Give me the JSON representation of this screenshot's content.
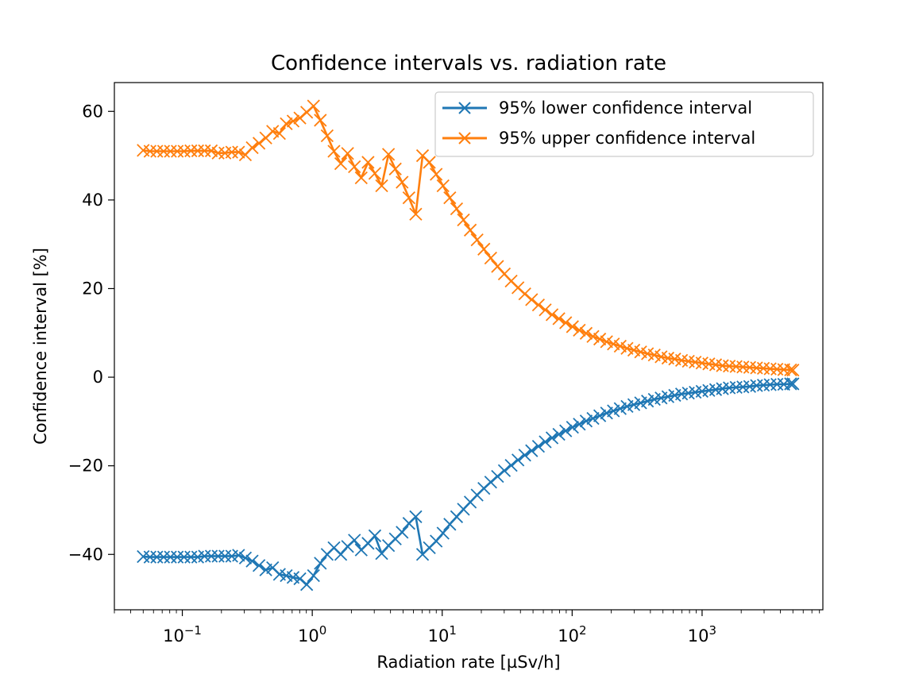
{
  "chart_data": {
    "type": "line",
    "title": "Confidence intervals vs. radiation rate",
    "xlabel": "Radiation rate [µSv/h]",
    "ylabel": "Confidence interval [%]",
    "xscale": "log",
    "xlim": [
      0.03,
      8500
    ],
    "ylim": [
      -52.5,
      66.5
    ],
    "x_ticks": [
      {
        "value": 0.1,
        "base": "10",
        "exp": "−1"
      },
      {
        "value": 1,
        "base": "10",
        "exp": "0"
      },
      {
        "value": 10,
        "base": "10",
        "exp": "1"
      },
      {
        "value": 100,
        "base": "10",
        "exp": "2"
      },
      {
        "value": 1000,
        "base": "10",
        "exp": "3"
      }
    ],
    "y_ticks": [
      {
        "value": 60,
        "label": "60"
      },
      {
        "value": 40,
        "label": "40"
      },
      {
        "value": 20,
        "label": "20"
      },
      {
        "value": 0,
        "label": "0"
      },
      {
        "value": -20,
        "label": "−20"
      },
      {
        "value": -40,
        "label": "−40"
      }
    ],
    "grid": false,
    "legend": "top-right",
    "marker": "x",
    "x": [
      0.05,
      0.0564,
      0.0636,
      0.0718,
      0.081,
      0.0914,
      0.1031,
      0.1164,
      0.1313,
      0.1481,
      0.1671,
      0.1886,
      0.2128,
      0.2401,
      0.2709,
      0.3057,
      0.3449,
      0.3892,
      0.4391,
      0.4955,
      0.5591,
      0.6309,
      0.7119,
      0.8032,
      0.9063,
      1.0227,
      1.1539,
      1.302,
      1.4692,
      1.6577,
      1.8705,
      2.1106,
      2.3815,
      2.6872,
      3.0321,
      3.4213,
      3.8605,
      4.3561,
      4.9152,
      5.5461,
      6.258,
      7.0613,
      7.9677,
      8.9905,
      10.1445,
      11.4467,
      12.916,
      14.5739,
      16.4447,
      18.5556,
      20.9374,
      23.6251,
      26.6576,
      30.0795,
      33.9406,
      38.2973,
      43.2132,
      48.7601,
      55.019,
      62.0815,
      70.0504,
      79.0422,
      89.1882,
      100.6368,
      113.5551,
      128.1316,
      144.5791,
      163.1379,
      184.0789,
      207.7081,
      234.3704,
      264.4552,
      298.4019,
      336.7062,
      379.9272,
      428.6963,
      483.7255,
      545.8185,
      615.8798,
      694.9352,
      784.1381,
      884.8069,
      998.3823,
      1126.5496,
      1271.1638,
      1434.3397,
      1618.4634,
      1826.2232,
      2060.6473,
      2325.1639,
      2623.6297,
      2960.4069,
      3340.4145,
      3769.2052,
      4253.0411,
      4799.0,
      5000
    ],
    "series": [
      {
        "name": "95% lower confidence interval",
        "color": "#1f77b4",
        "values": [
          -40.5,
          -40.6,
          -40.6,
          -40.6,
          -40.6,
          -40.6,
          -40.6,
          -40.6,
          -40.6,
          -40.4,
          -40.4,
          -40.4,
          -40.4,
          -40.4,
          -40.2,
          -40.8,
          -41.5,
          -42.5,
          -43.5,
          -43.0,
          -44.5,
          -44.8,
          -45.2,
          -45.5,
          -46.8,
          -44.8,
          -42.0,
          -40.0,
          -38.5,
          -40.0,
          -38.2,
          -36.8,
          -39.0,
          -37.5,
          -35.8,
          -39.8,
          -38.0,
          -36.5,
          -35.0,
          -33.0,
          -31.5,
          -40.0,
          -38.5,
          -37.0,
          -35.2,
          -33.2,
          -31.5,
          -29.8,
          -28.2,
          -26.6,
          -25.1,
          -23.7,
          -22.4,
          -21.1,
          -19.9,
          -18.7,
          -17.6,
          -16.6,
          -15.6,
          -14.6,
          -13.7,
          -12.9,
          -12.1,
          -11.3,
          -10.6,
          -9.9,
          -9.3,
          -8.7,
          -8.1,
          -7.6,
          -7.1,
          -6.6,
          -6.2,
          -5.8,
          -5.4,
          -5.0,
          -4.7,
          -4.4,
          -4.1,
          -3.8,
          -3.6,
          -3.4,
          -3.2,
          -3.0,
          -2.8,
          -2.6,
          -2.4,
          -2.3,
          -2.2,
          -2.1,
          -1.9,
          -1.8,
          -1.7,
          -1.6,
          -1.6,
          -1.5,
          -1.5
        ]
      },
      {
        "name": "95% upper confidence interval",
        "color": "#ff7f0e",
        "values": [
          51.2,
          51.0,
          51.0,
          51.0,
          51.0,
          51.0,
          51.0,
          51.1,
          51.1,
          51.1,
          51.1,
          50.6,
          50.6,
          50.8,
          50.8,
          50.2,
          51.8,
          52.8,
          54.0,
          55.5,
          55.0,
          57.2,
          57.8,
          58.5,
          59.8,
          61.2,
          58.0,
          54.5,
          51.0,
          48.2,
          50.5,
          47.5,
          45.0,
          48.5,
          46.0,
          43.2,
          50.3,
          47.0,
          44.0,
          40.5,
          36.8,
          50.0,
          48.5,
          45.8,
          43.2,
          40.5,
          38.0,
          35.5,
          33.2,
          31.0,
          28.9,
          26.9,
          25.0,
          23.3,
          21.7,
          20.2,
          18.8,
          17.5,
          16.3,
          15.2,
          14.1,
          13.2,
          12.3,
          11.4,
          10.6,
          9.9,
          9.2,
          8.6,
          8.0,
          7.5,
          7.0,
          6.5,
          6.1,
          5.7,
          5.3,
          5.0,
          4.6,
          4.3,
          4.1,
          3.8,
          3.6,
          3.4,
          3.2,
          3.0,
          2.8,
          2.6,
          2.5,
          2.4,
          2.3,
          2.2,
          2.1,
          2.0,
          1.9,
          1.8,
          1.7,
          1.65,
          1.6
        ]
      }
    ]
  }
}
